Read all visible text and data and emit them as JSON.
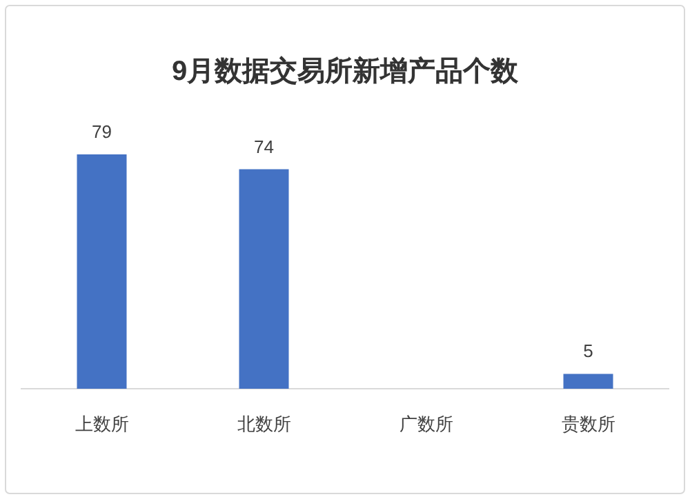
{
  "chart_data": {
    "type": "bar",
    "title": "9月数据交易所新增产品个数",
    "categories": [
      "上数所",
      "北数所",
      "广数所",
      "贵数所"
    ],
    "values": [
      79,
      74,
      null,
      5
    ],
    "color": "#4472c4",
    "data_labels": true
  }
}
